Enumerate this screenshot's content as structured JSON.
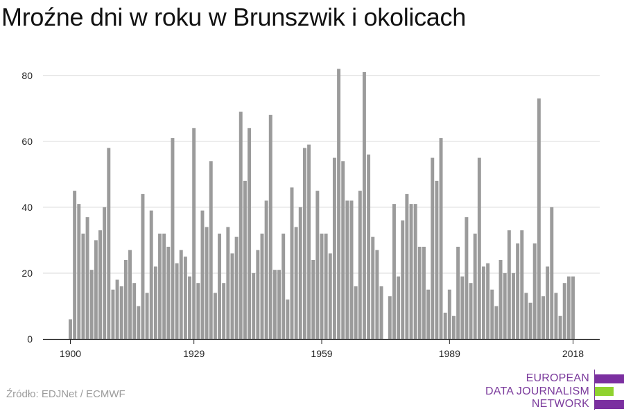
{
  "title": "Mroźne dni w roku w Brunszwik i okolicach",
  "source": "Źródło: EDJNet / ECMWF",
  "logo": {
    "lines": [
      "EUROPEAN",
      "DATA JOURNALISM",
      "NETWORK"
    ]
  },
  "colors": {
    "bar": "#9b9b9b",
    "grid": "#d9d9d9",
    "axis": "#222222",
    "logo_purple": "#7b2fa0",
    "logo_green": "#8fd22f"
  },
  "chart_data": {
    "type": "bar",
    "title": "Mroźne dni w roku w Brunszwik i okolicach",
    "xlabel": "",
    "ylabel": "",
    "ylim": [
      0,
      85
    ],
    "yticks": [
      0,
      20,
      40,
      60,
      80
    ],
    "xticks": [
      1900,
      1929,
      1959,
      1989,
      2018
    ],
    "grid": true,
    "x_start": 1900,
    "x_end": 2018,
    "values": [
      6,
      45,
      41,
      32,
      37,
      21,
      30,
      33,
      40,
      58,
      15,
      18,
      16,
      24,
      27,
      17,
      10,
      44,
      14,
      39,
      22,
      32,
      32,
      28,
      61,
      23,
      27,
      25,
      19,
      64,
      17,
      39,
      34,
      54,
      14,
      32,
      17,
      34,
      26,
      31,
      69,
      48,
      64,
      20,
      27,
      32,
      42,
      68,
      21,
      21,
      32,
      12,
      46,
      34,
      40,
      58,
      59,
      24,
      45,
      32,
      32,
      26,
      55,
      82,
      54,
      42,
      42,
      16,
      45,
      81,
      56,
      31,
      27,
      16,
      0,
      13,
      41,
      19,
      36,
      44,
      41,
      41,
      28,
      28,
      15,
      55,
      48,
      61,
      8,
      15,
      7,
      28,
      19,
      37,
      17,
      32,
      55,
      22,
      23,
      15,
      10,
      24,
      20,
      33,
      20,
      29,
      33,
      14,
      11,
      29,
      73,
      13,
      22,
      40,
      14,
      7,
      17,
      19,
      19
    ]
  }
}
